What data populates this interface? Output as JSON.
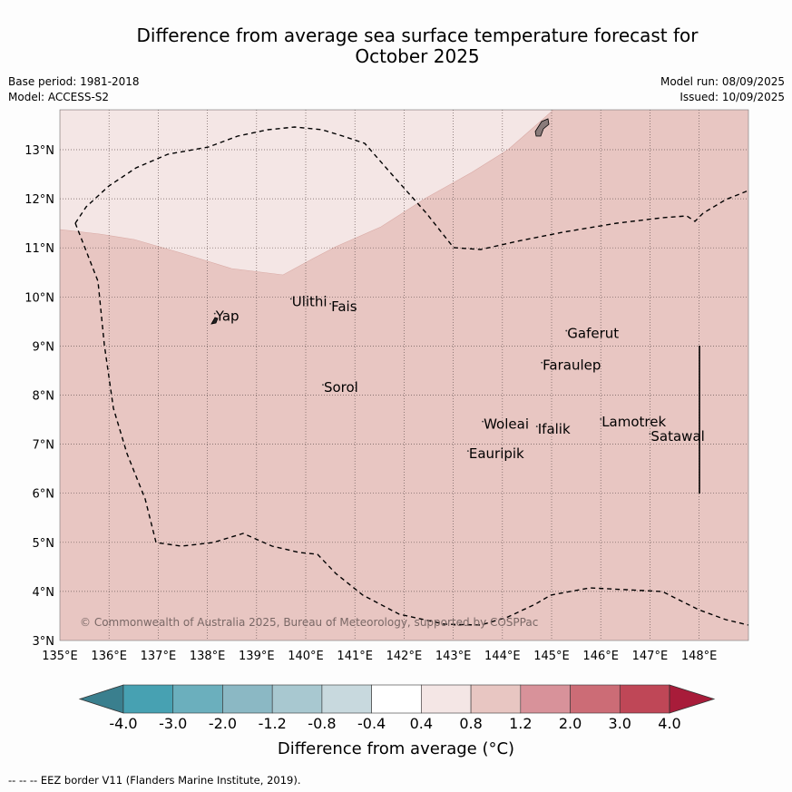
{
  "title_line1": "Difference from average sea surface temperature forecast for",
  "title_line2": "October 2025",
  "meta": {
    "base_period": "Base period: 1981-2018",
    "model": "Model: ACCESS-S2",
    "model_run": "Model run: 08/09/2025",
    "issued": "Issued: 10/09/2025"
  },
  "map": {
    "lon_ticks": [
      "135°E",
      "136°E",
      "137°E",
      "138°E",
      "139°E",
      "140°E",
      "141°E",
      "142°E",
      "143°E",
      "144°E",
      "145°E",
      "146°E",
      "147°E",
      "148°E"
    ],
    "lat_ticks": [
      "3°N",
      "4°N",
      "5°N",
      "6°N",
      "7°N",
      "8°N",
      "9°N",
      "10°N",
      "11°N",
      "12°N",
      "13°N"
    ],
    "islands": [
      {
        "name": "Ulithi",
        "lon": 139.7,
        "lat": 9.85
      },
      {
        "name": "Fais",
        "lon": 140.5,
        "lat": 9.75
      },
      {
        "name": "Yap",
        "lon": 138.15,
        "lat": 9.55
      },
      {
        "name": "Gaferut",
        "lon": 145.3,
        "lat": 9.2
      },
      {
        "name": "Faraulep",
        "lon": 144.8,
        "lat": 8.55
      },
      {
        "name": "Sorol",
        "lon": 140.35,
        "lat": 8.1
      },
      {
        "name": "Lamotrek",
        "lon": 146.0,
        "lat": 7.4
      },
      {
        "name": "Woleai",
        "lon": 143.6,
        "lat": 7.35
      },
      {
        "name": "Ifalik",
        "lon": 144.7,
        "lat": 7.25
      },
      {
        "name": "Satawal",
        "lon": 147.0,
        "lat": 7.1
      },
      {
        "name": "Eauripik",
        "lon": 143.3,
        "lat": 6.75
      }
    ],
    "copyright": "© Commonwealth of Australia 2025, Bureau of Meteorology, supported by COSPPac"
  },
  "colorbar": {
    "ticks": [
      "-4.0",
      "-3.0",
      "-2.0",
      "-1.2",
      "-0.8",
      "-0.4",
      "0.4",
      "0.8",
      "1.2",
      "2.0",
      "3.0",
      "4.0"
    ],
    "colors": [
      "#3a7f8e",
      "#47a1b2",
      "#6bafbd",
      "#8bb8c4",
      "#a8c8d0",
      "#c8d9de",
      "#ffffff",
      "#f4e6e5",
      "#e8c6c2",
      "#d8929a",
      "#cc6c76",
      "#bf4757",
      "#a81c3a"
    ],
    "label": "Difference from average (°C)"
  },
  "footnote": "--  --  -- EEZ border V11 (Flanders Marine Institute, 2019)."
}
